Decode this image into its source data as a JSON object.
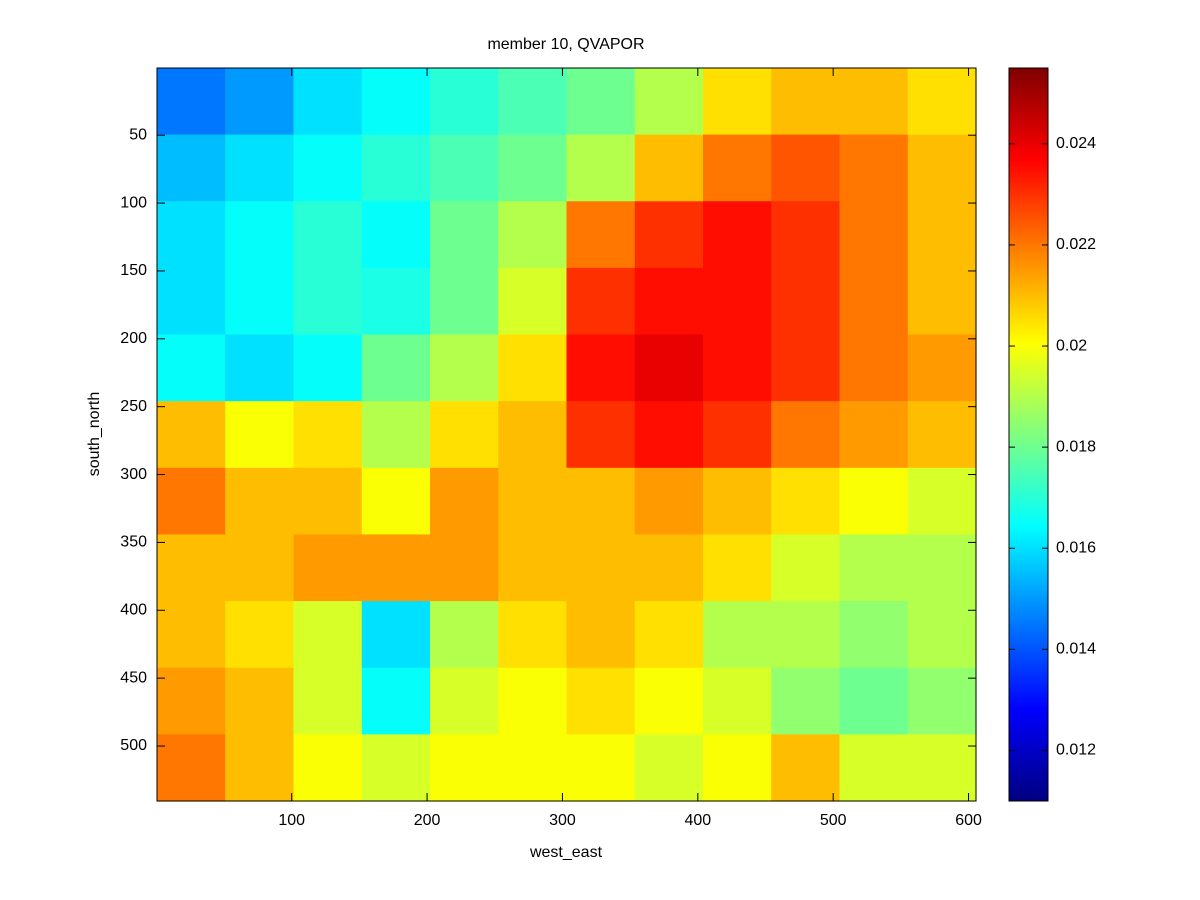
{
  "chart_data": {
    "type": "heatmap",
    "title": "member 10, QVAPOR",
    "xlabel": "west_east",
    "ylabel": "south_north",
    "xlim": [
      0.5,
      605.5
    ],
    "ylim": [
      0.5,
      540.5
    ],
    "y_reversed": true,
    "xticks": [
      100,
      200,
      300,
      400,
      500,
      600
    ],
    "yticks": [
      50,
      100,
      150,
      200,
      250,
      300,
      350,
      400,
      450,
      500
    ],
    "colormap": "jet",
    "clim": [
      0.011,
      0.0255
    ],
    "cticks": [
      0.012,
      0.014,
      0.016,
      0.018,
      0.02,
      0.022,
      0.024
    ],
    "z": [
      [
        0.0145,
        0.015,
        0.016,
        0.0165,
        0.017,
        0.0175,
        0.018,
        0.019,
        0.0205,
        0.021,
        0.021,
        0.0205
      ],
      [
        0.0155,
        0.016,
        0.0165,
        0.017,
        0.0175,
        0.018,
        0.019,
        0.021,
        0.022,
        0.0225,
        0.022,
        0.021
      ],
      [
        0.016,
        0.0165,
        0.017,
        0.0165,
        0.018,
        0.019,
        0.022,
        0.023,
        0.0235,
        0.023,
        0.022,
        0.021
      ],
      [
        0.016,
        0.0165,
        0.017,
        0.0168,
        0.018,
        0.0195,
        0.023,
        0.0235,
        0.0235,
        0.023,
        0.022,
        0.021
      ],
      [
        0.0165,
        0.016,
        0.0165,
        0.018,
        0.019,
        0.0205,
        0.0235,
        0.024,
        0.0235,
        0.023,
        0.022,
        0.0215
      ],
      [
        0.021,
        0.02,
        0.0205,
        0.019,
        0.0205,
        0.021,
        0.023,
        0.0235,
        0.023,
        0.022,
        0.0215,
        0.021
      ],
      [
        0.022,
        0.021,
        0.021,
        0.02,
        0.0215,
        0.021,
        0.021,
        0.0215,
        0.021,
        0.0205,
        0.02,
        0.0195
      ],
      [
        0.021,
        0.021,
        0.0215,
        0.0215,
        0.0215,
        0.021,
        0.021,
        0.021,
        0.0205,
        0.0195,
        0.019,
        0.019
      ],
      [
        0.021,
        0.0205,
        0.0195,
        0.016,
        0.019,
        0.0205,
        0.021,
        0.0205,
        0.019,
        0.019,
        0.0185,
        0.019
      ],
      [
        0.0215,
        0.021,
        0.0195,
        0.0165,
        0.0195,
        0.02,
        0.0205,
        0.02,
        0.0195,
        0.0185,
        0.018,
        0.0185
      ],
      [
        0.022,
        0.021,
        0.02,
        0.0195,
        0.02,
        0.02,
        0.02,
        0.0195,
        0.02,
        0.021,
        0.0195,
        0.0195
      ]
    ]
  }
}
